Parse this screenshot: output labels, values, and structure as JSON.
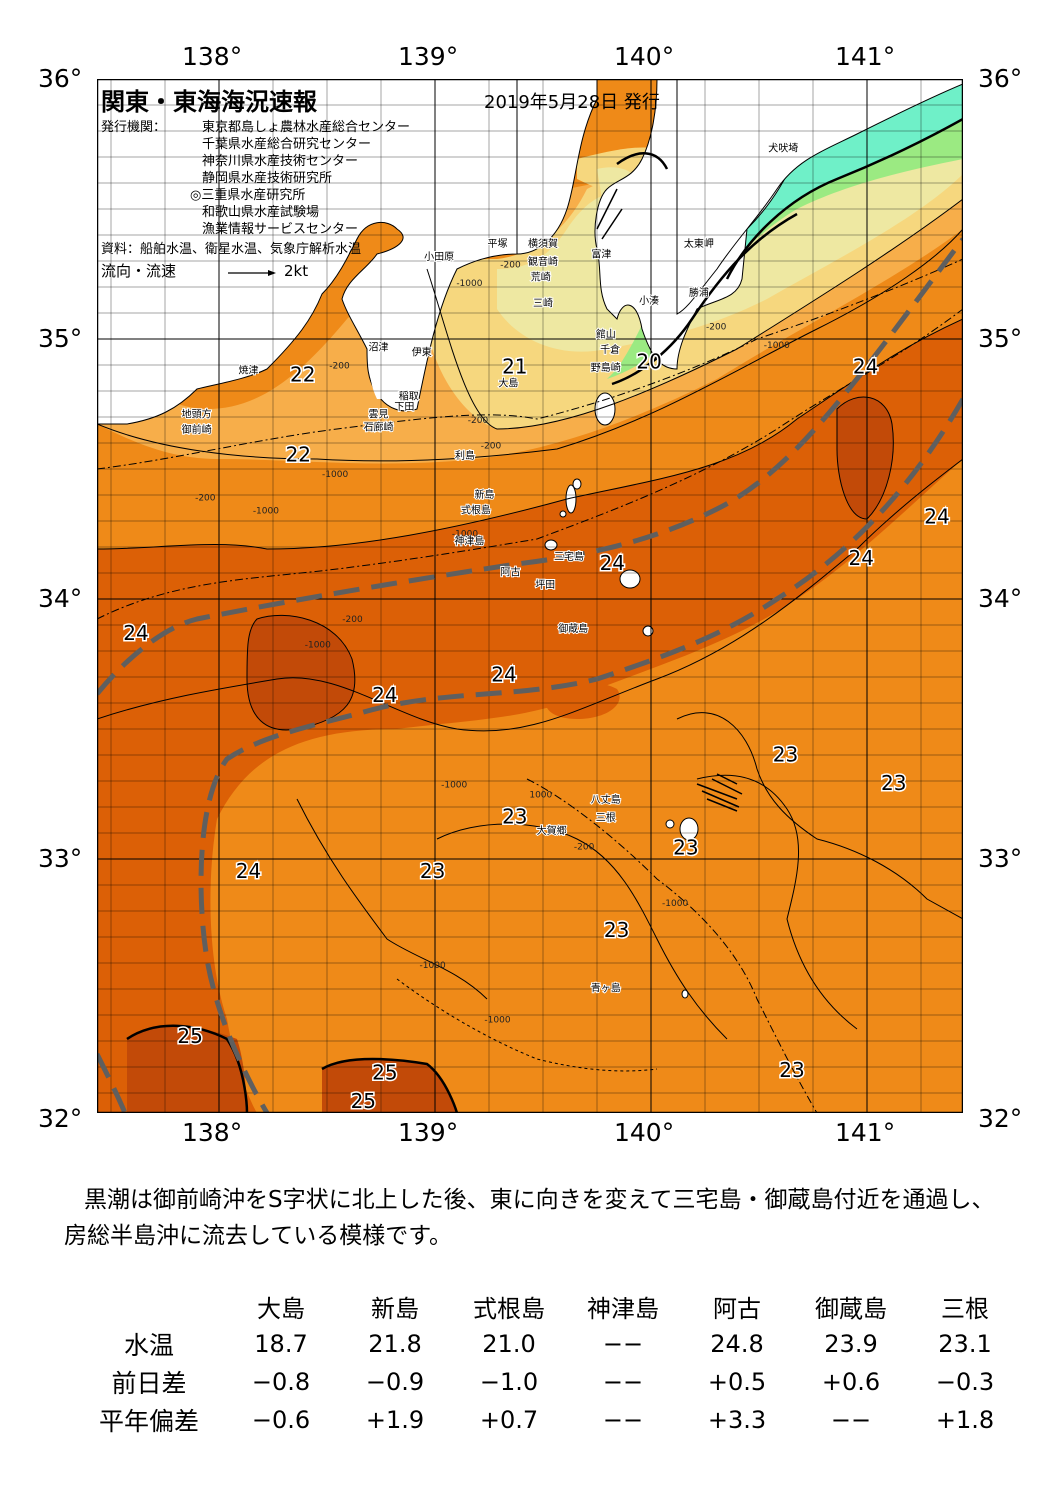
{
  "title": "関東・東海海況速報",
  "issue_date": "2019年5月28日 発行",
  "header": {
    "issuers_label": "発行機関：",
    "issuers": [
      "東京都島しょ農林水産総合センター",
      "千葉県水産総合研究センター",
      "神奈川県水産技術センター",
      "静岡県水産技術研究所",
      "◎三重県水産研究所",
      "和歌山県水産試験場",
      "漁業情報サービスセンター"
    ],
    "sources": "資料：船舶水温、衛星水温、気象庁解析水温",
    "flow_legend_label": "流向・流速",
    "flow_legend_value": "2kt"
  },
  "map": {
    "lon_labels": [
      "138°",
      "139°",
      "140°",
      "141°"
    ],
    "lat_labels": [
      "36°",
      "35°",
      "34°",
      "33°",
      "32°"
    ],
    "lon_range": [
      137.5,
      141.5
    ],
    "lat_range": [
      32.0,
      36.0
    ],
    "colors": {
      "temp_25": "#c24a08",
      "temp_24": "#dc6006",
      "temp_23": "#ef8a18",
      "temp_22": "#f7ae4a",
      "temp_21": "#f6d77e",
      "temp_20": "#eee8a2",
      "temp_18": "#9bea82",
      "temp_17": "#6ff0c8",
      "land": "#ffffff",
      "kuroshio_axis": "#5f5f5f"
    },
    "temperature_labels": [
      {
        "text": "22",
        "lon": 138.45,
        "lat": 34.83
      },
      {
        "text": "22",
        "lon": 138.43,
        "lat": 34.52
      },
      {
        "text": "21",
        "lon": 139.43,
        "lat": 34.86
      },
      {
        "text": "20",
        "lon": 140.05,
        "lat": 34.88
      },
      {
        "text": "24",
        "lon": 141.05,
        "lat": 34.86
      },
      {
        "text": "24",
        "lon": 141.38,
        "lat": 34.28
      },
      {
        "text": "24",
        "lon": 141.03,
        "lat": 34.12
      },
      {
        "text": "24",
        "lon": 139.88,
        "lat": 34.1
      },
      {
        "text": "24",
        "lon": 137.68,
        "lat": 33.83
      },
      {
        "text": "24",
        "lon": 138.83,
        "lat": 33.59
      },
      {
        "text": "24",
        "lon": 139.38,
        "lat": 33.67
      },
      {
        "text": "23",
        "lon": 140.68,
        "lat": 33.36
      },
      {
        "text": "23",
        "lon": 141.18,
        "lat": 33.25
      },
      {
        "text": "23",
        "lon": 139.43,
        "lat": 33.12
      },
      {
        "text": "23",
        "lon": 140.22,
        "lat": 33.0
      },
      {
        "text": "24",
        "lon": 138.2,
        "lat": 32.91
      },
      {
        "text": "23",
        "lon": 139.05,
        "lat": 32.91
      },
      {
        "text": "23",
        "lon": 139.9,
        "lat": 32.68
      },
      {
        "text": "25",
        "lon": 137.93,
        "lat": 32.27
      },
      {
        "text": "25",
        "lon": 138.83,
        "lat": 32.13
      },
      {
        "text": "25",
        "lon": 138.73,
        "lat": 32.02
      },
      {
        "text": "23",
        "lon": 140.71,
        "lat": 32.14
      }
    ],
    "place_labels": [
      {
        "text": "犬吠埼",
        "lon": 140.67,
        "lat": 35.72
      },
      {
        "text": "太東岬",
        "lon": 140.28,
        "lat": 35.35
      },
      {
        "text": "勝浦",
        "lon": 140.28,
        "lat": 35.16
      },
      {
        "text": "小湊",
        "lon": 140.05,
        "lat": 35.13
      },
      {
        "text": "富津",
        "lon": 139.83,
        "lat": 35.31
      },
      {
        "text": "横須賀",
        "lon": 139.56,
        "lat": 35.35
      },
      {
        "text": "観音崎",
        "lon": 139.56,
        "lat": 35.28
      },
      {
        "text": "平塚",
        "lon": 139.35,
        "lat": 35.35
      },
      {
        "text": "荒崎",
        "lon": 139.55,
        "lat": 35.22
      },
      {
        "text": "三崎",
        "lon": 139.56,
        "lat": 35.12
      },
      {
        "text": "小田原",
        "lon": 139.08,
        "lat": 35.3
      },
      {
        "text": "館山",
        "lon": 139.85,
        "lat": 35.0
      },
      {
        "text": "千倉",
        "lon": 139.87,
        "lat": 34.94
      },
      {
        "text": "野島崎",
        "lon": 139.85,
        "lat": 34.87
      },
      {
        "text": "沼津",
        "lon": 138.8,
        "lat": 34.95
      },
      {
        "text": "伊東",
        "lon": 139.0,
        "lat": 34.93
      },
      {
        "text": "大島",
        "lon": 139.4,
        "lat": 34.81
      },
      {
        "text": "焼津",
        "lon": 138.2,
        "lat": 34.86
      },
      {
        "text": "稲取",
        "lon": 138.94,
        "lat": 34.76
      },
      {
        "text": "下田",
        "lon": 138.92,
        "lat": 34.72
      },
      {
        "text": "雲見",
        "lon": 138.8,
        "lat": 34.69
      },
      {
        "text": "石廊崎",
        "lon": 138.8,
        "lat": 34.64
      },
      {
        "text": "地頭方",
        "lon": 137.96,
        "lat": 34.69
      },
      {
        "text": "御前崎",
        "lon": 137.96,
        "lat": 34.63
      },
      {
        "text": "利島",
        "lon": 139.2,
        "lat": 34.53
      },
      {
        "text": "新島",
        "lon": 139.29,
        "lat": 34.38
      },
      {
        "text": "式根島",
        "lon": 139.25,
        "lat": 34.32
      },
      {
        "text": "神津島",
        "lon": 139.22,
        "lat": 34.2
      },
      {
        "text": "三宅島",
        "lon": 139.68,
        "lat": 34.14
      },
      {
        "text": "阿古",
        "lon": 139.41,
        "lat": 34.08
      },
      {
        "text": "坪田",
        "lon": 139.57,
        "lat": 34.03
      },
      {
        "text": "御蔵島",
        "lon": 139.7,
        "lat": 33.86
      },
      {
        "text": "八丈島",
        "lon": 139.85,
        "lat": 33.2
      },
      {
        "text": "三根",
        "lon": 139.85,
        "lat": 33.13
      },
      {
        "text": "大賀郷",
        "lon": 139.6,
        "lat": 33.08
      },
      {
        "text": "青ヶ島",
        "lon": 139.85,
        "lat": 32.47
      }
    ],
    "depth_labels": [
      {
        "text": "-1000",
        "lon": 139.22,
        "lat": 35.2
      },
      {
        "text": "-200",
        "lon": 139.41,
        "lat": 35.27
      },
      {
        "text": "-200",
        "lon": 140.36,
        "lat": 35.03
      },
      {
        "text": "-1000",
        "lon": 140.64,
        "lat": 34.96
      },
      {
        "text": "-200",
        "lon": 138.62,
        "lat": 34.88
      },
      {
        "text": "-1000",
        "lon": 138.6,
        "lat": 34.46
      },
      {
        "text": "-1000",
        "lon": 138.28,
        "lat": 34.32
      },
      {
        "text": "-200",
        "lon": 138.0,
        "lat": 34.37
      },
      {
        "text": "-200",
        "lon": 139.26,
        "lat": 34.67
      },
      {
        "text": "-200",
        "lon": 139.32,
        "lat": 34.57
      },
      {
        "text": "-1000",
        "lon": 139.2,
        "lat": 34.23
      },
      {
        "text": "-200",
        "lon": 138.68,
        "lat": 33.9
      },
      {
        "text": "-1000",
        "lon": 138.52,
        "lat": 33.8
      },
      {
        "text": "-1000",
        "lon": 139.15,
        "lat": 33.26
      },
      {
        "text": "1000",
        "lon": 139.55,
        "lat": 33.22
      },
      {
        "text": "-200",
        "lon": 139.75,
        "lat": 33.02
      },
      {
        "text": "-1000",
        "lon": 140.17,
        "lat": 32.8
      },
      {
        "text": "-1000",
        "lon": 139.05,
        "lat": 32.56
      },
      {
        "text": "-1000",
        "lon": 139.35,
        "lat": 32.35
      }
    ]
  },
  "description": "黒潮は御前崎沖をS字状に北上した後、東に向きを変えて三宅島・御蔵島付近を通過し、房総半島沖に流去している模様です。",
  "table": {
    "columns": [
      "大島",
      "新島",
      "式根島",
      "神津島",
      "阿古",
      "御蔵島",
      "三根"
    ],
    "rows": [
      {
        "label": "水温",
        "values": [
          "18.7",
          "21.8",
          "21.0",
          "−−",
          "24.8",
          "23.9",
          "23.1"
        ]
      },
      {
        "label": "前日差",
        "values": [
          "−0.8",
          "−0.9",
          "−1.0",
          "−−",
          "+0.5",
          "+0.6",
          "−0.3"
        ]
      },
      {
        "label": "平年偏差",
        "values": [
          "−0.6",
          "+1.9",
          "+0.7",
          "−−",
          "+3.3",
          "−−",
          "+1.8"
        ]
      }
    ]
  }
}
